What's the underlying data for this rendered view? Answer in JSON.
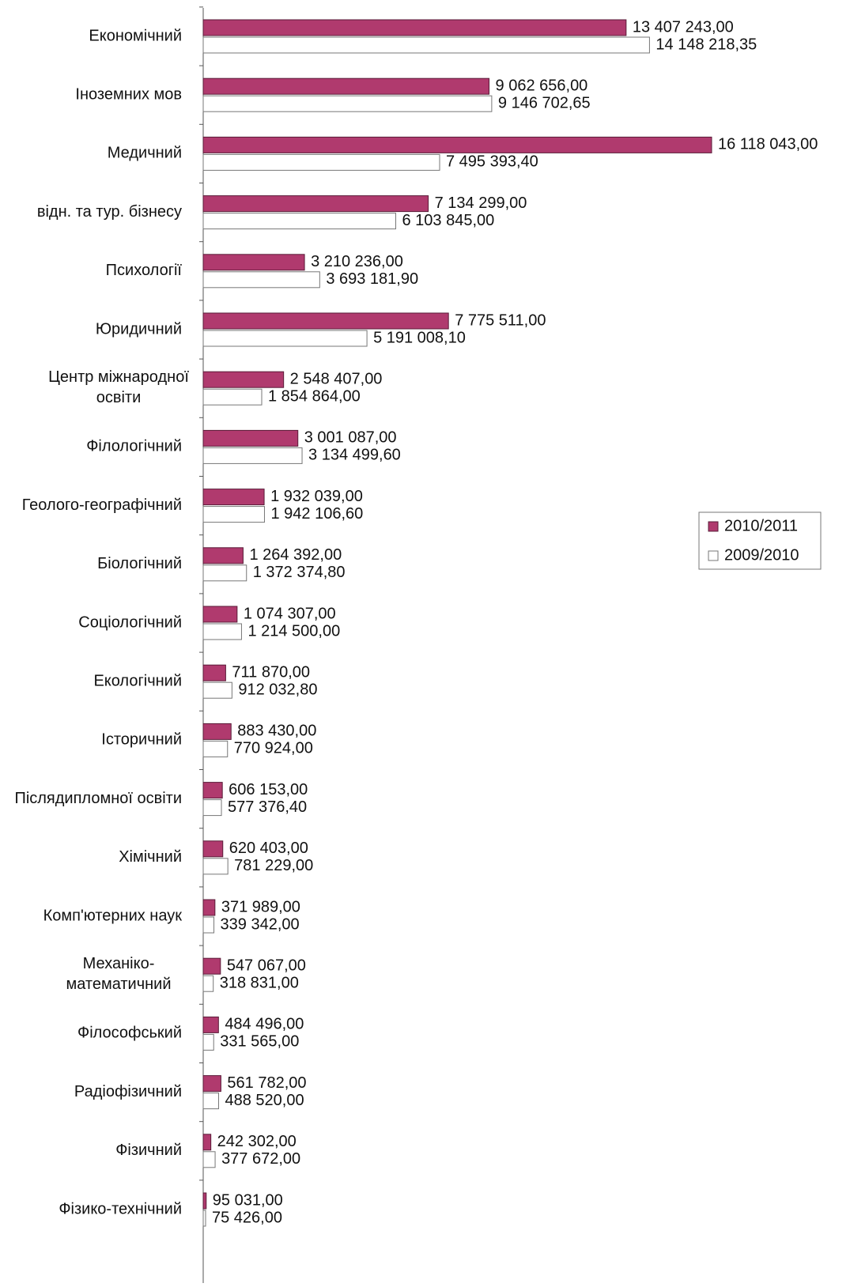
{
  "chart_data": {
    "type": "bar",
    "orientation": "horizontal",
    "categories": [
      "Економічний",
      "Іноземних мов",
      "Медичний",
      "відн. та тур. бізнесу",
      "Психології",
      "Юридичний",
      "Центр міжнародної\nосвіти",
      "Філологічний",
      "Геолого-географічний",
      "Біологічний",
      "Соціологічний",
      "Екологічний",
      "Історичний",
      "Післядипломної  освіти",
      "Хімічний",
      "Комп'ютерних наук",
      "Механіко-\nматематичний",
      "Філософський",
      "Радіофізичний",
      "Фізичний",
      "Фізико-технічний"
    ],
    "series": [
      {
        "name": "2010/2011",
        "color": "#b03a6e",
        "values": [
          13407243,
          9062656,
          16118043,
          7134299,
          3210236,
          7775511,
          2548407,
          3001087,
          1932039,
          1264392,
          1074307,
          711870,
          883430,
          606153,
          620403,
          371989,
          547067,
          484496,
          561782,
          242302,
          95031
        ],
        "value_labels": [
          "13 407 243,00",
          "9 062 656,00",
          "16 118 043,00",
          "7 134 299,00",
          "3 210 236,00",
          "7 775 511,00",
          "2 548 407,00",
          "3 001 087,00",
          "1 932 039,00",
          "1 264 392,00",
          "1 074 307,00",
          "711 870,00",
          "883 430,00",
          "606 153,00",
          "620 403,00",
          "371 989,00",
          "547 067,00",
          "484 496,00",
          "561 782,00",
          "242 302,00",
          "95 031,00"
        ]
      },
      {
        "name": "2009/2010",
        "color": "#ffffff",
        "values": [
          14148218.35,
          9146702.65,
          7495393.4,
          6103845,
          3693181.9,
          5191008.1,
          1854864,
          3134499.6,
          1942106.6,
          1372374.8,
          1214500,
          912032.8,
          770924,
          577376.4,
          781229,
          339342,
          318831,
          331565,
          488520,
          377672,
          75426
        ],
        "value_labels": [
          "14 148 218,35",
          "9 146 702,65",
          "7 495 393,40",
          "6 103 845,00",
          "3 693 181,90",
          "5 191 008,10",
          "1 854 864,00",
          "3 134 499,60",
          "1 942 106,60",
          "1 372 374,80",
          "1 214 500,00",
          "912 032,80",
          "770 924,00",
          "577 376,40",
          "781 229,00",
          "339 342,00",
          "318 831,00",
          "331 565,00",
          "488 520,00",
          "377 672,00",
          "75 426,00"
        ]
      }
    ],
    "legend": "right"
  }
}
